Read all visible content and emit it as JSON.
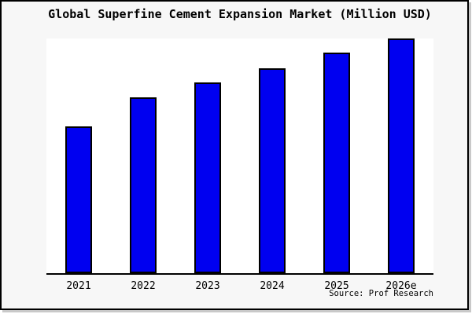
{
  "frame": {
    "background_color": "#f7f7f7",
    "border_color": "#000000"
  },
  "title": "Global Superfine Cement Expansion Market (Million USD)",
  "source": "Source: Prof Research",
  "chart_data": {
    "type": "bar",
    "title": "Global Superfine Cement Expansion Market (Million USD)",
    "categories": [
      "2021",
      "2022",
      "2023",
      "2024",
      "2025",
      "2026e"
    ],
    "values": [
      62.7,
      75.0,
      81.3,
      87.3,
      94.0,
      100.0
    ],
    "xlabel": "",
    "ylabel": "",
    "ylim": [
      0,
      100
    ],
    "grid": false,
    "legend": false,
    "y_axis_visible": false,
    "value_note": "No y-axis scale or data labels shown; values estimated from bar heights, normalized to 2026e = 100",
    "bar_color": "#0000f0",
    "bar_border_color": "#000000",
    "plot_background": "#ffffff",
    "axis_color": "#000000"
  }
}
